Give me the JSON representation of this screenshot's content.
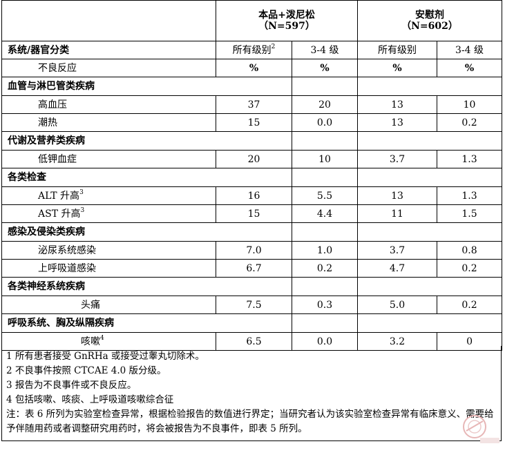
{
  "table": {
    "header": {
      "arm1_title": "本品+泼尼松",
      "arm1_n": "（N=597）",
      "arm2_title": "安慰剂",
      "arm2_n": "（N=602）",
      "col_system": "系统/器官分类",
      "col_ae": "不良反应",
      "all_grades": "所有级别",
      "all_grades_note": "2",
      "grade34": "3-4 级",
      "pct": "%"
    },
    "groups": [
      {
        "label": "血管与淋巴管类疾病",
        "rows": [
          {
            "name": "高血压",
            "sup": "",
            "v": [
              "37",
              "20",
              "13",
              "10"
            ]
          },
          {
            "name": "潮热",
            "sup": "",
            "v": [
              "15",
              "0.0",
              "13",
              "0.2"
            ]
          }
        ]
      },
      {
        "label": "代谢及营养类疾病",
        "rows": [
          {
            "name": "低钾血症",
            "sup": "",
            "v": [
              "20",
              "10",
              "3.7",
              "1.3"
            ]
          }
        ]
      },
      {
        "label": "各类检查",
        "rows": [
          {
            "name": "ALT 升高",
            "sup": "3",
            "v": [
              "16",
              "5.5",
              "13",
              "1.3"
            ]
          },
          {
            "name": "AST 升高",
            "sup": "3",
            "v": [
              "15",
              "4.4",
              "11",
              "1.5"
            ]
          }
        ]
      },
      {
        "label": "感染及侵染类疾病",
        "rows": [
          {
            "name": "泌尿系统感染",
            "sup": "",
            "v": [
              "7.0",
              "1.0",
              "3.7",
              "0.8"
            ]
          },
          {
            "name": "上呼吸道感染",
            "sup": "",
            "v": [
              "6.7",
              "0.2",
              "4.7",
              "0.2"
            ]
          }
        ]
      },
      {
        "label": "各类神经系统疾病",
        "rows": [
          {
            "name": "头痛",
            "sup": "",
            "v": [
              "7.5",
              "0.3",
              "5.0",
              "0.2"
            ]
          }
        ]
      },
      {
        "label": "呼吸系统、胸及纵隔疾病",
        "rows": [
          {
            "name": "咳嗽",
            "sup": "4",
            "v": [
              "6.5",
              "0.0",
              "3.2",
              "0"
            ]
          }
        ]
      }
    ]
  },
  "notes": {
    "n1": "1 所有患者接受 GnRHa 或接受过睾丸切除术。",
    "n2": "2 不良事件按照 CTCAE 4.0 版分级。",
    "n3": "3 报告为不良事件或不良反应。",
    "n4": "4 包括咳嗽、咳痰、上呼吸道咳嗽综合征",
    "remark": "注：表 6 所列为实验室检查异常，根据检验报告的数值进行界定；当研究者认为该实验室检查异常有临床意义、需要给予伴随用药或者调整研究用药时，将会被报告为不良事件，即表 5 所列。"
  }
}
